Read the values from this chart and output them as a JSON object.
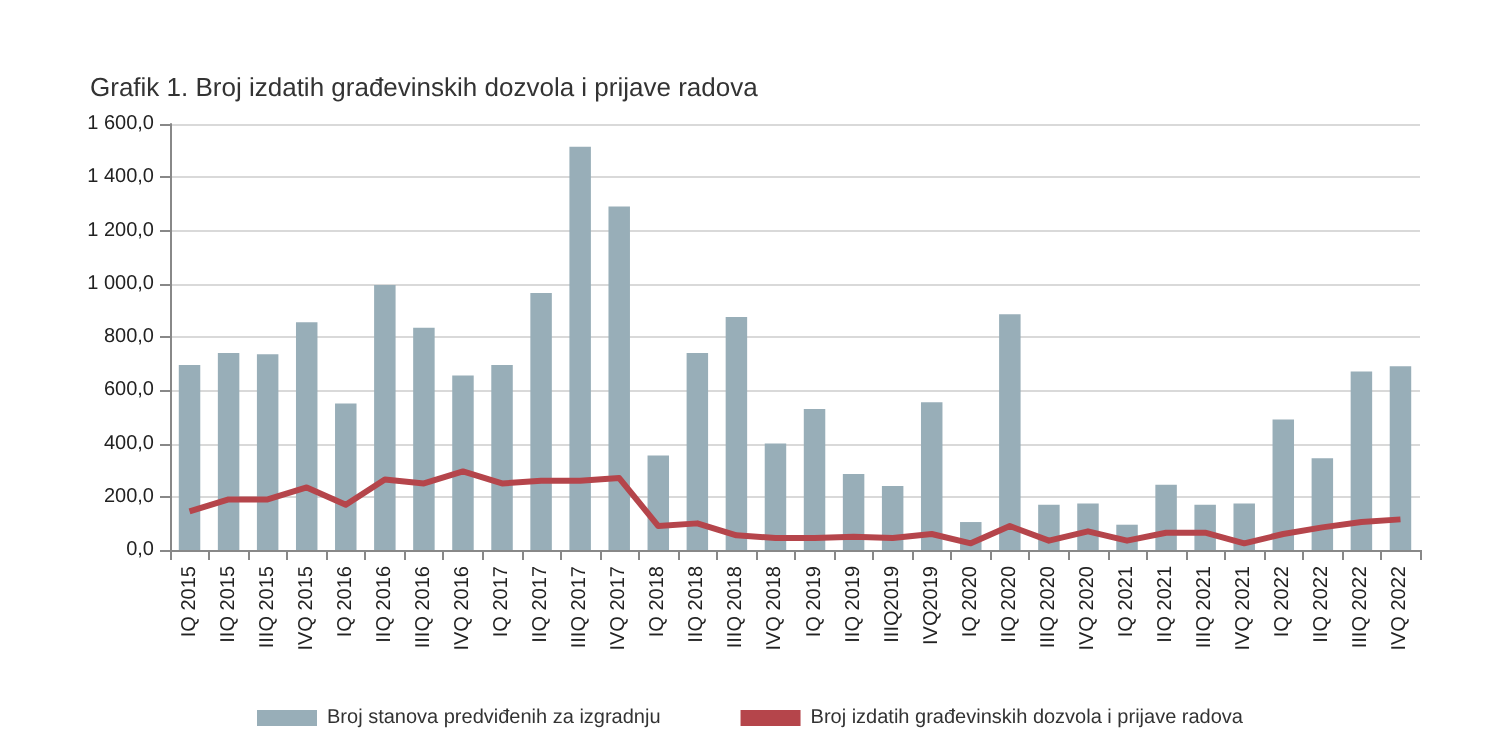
{
  "chart_data": {
    "type": "bar",
    "title": "Grafik 1. Broj izdatih građevinskih dozvola i prijave radova",
    "categories": [
      "IQ 2015",
      "IIQ 2015",
      "IIIQ 2015",
      "IVQ 2015",
      "IQ 2016",
      "IIQ 2016",
      "IIIQ 2016",
      "IVQ 2016",
      "IQ 2017",
      "IIQ 2017",
      "IIIQ 2017",
      "IVQ 2017",
      "IQ 2018",
      "IIQ 2018",
      "IIIQ 2018",
      "IVQ 2018",
      "IQ 2019",
      "IIQ 2019",
      "IIIQ2019",
      "IVQ2019",
      "IQ 2020",
      "IIQ 2020",
      "IIIQ 2020",
      "IVQ 2020",
      "IQ 2021",
      "IIQ 2021",
      "IIIQ 2021",
      "IVQ 2021",
      "IQ 2022",
      "IIQ 2022",
      "IIIQ 2022",
      "IVQ 2022"
    ],
    "series": [
      {
        "name": "Broj stanova predviđenih za izgradnju",
        "color": "#98aeb8",
        "values": [
          695,
          740,
          735,
          855,
          550,
          995,
          835,
          655,
          695,
          965,
          1515,
          1290,
          355,
          740,
          875,
          400,
          530,
          285,
          240,
          555,
          105,
          885,
          170,
          175,
          95,
          245,
          170,
          175,
          490,
          345,
          670,
          690
        ]
      },
      {
        "name": "Broj izdatih građevinskih dozvola i prijave radova",
        "type": "line",
        "color": "#b5454b",
        "values": [
          145,
          190,
          190,
          235,
          170,
          265,
          250,
          295,
          250,
          260,
          260,
          270,
          90,
          100,
          55,
          45,
          45,
          50,
          45,
          60,
          25,
          90,
          35,
          70,
          35,
          65,
          65,
          25,
          60,
          85,
          105,
          115
        ]
      }
    ],
    "ylim": [
      0,
      1600
    ],
    "yticks": [
      {
        "value": 0,
        "label": "0,0"
      },
      {
        "value": 200,
        "label": "200,0"
      },
      {
        "value": 400,
        "label": "400,0"
      },
      {
        "value": 600,
        "label": "600,0"
      },
      {
        "value": 800,
        "label": "800,0"
      },
      {
        "value": 1000,
        "label": "1 000,0"
      },
      {
        "value": 1200,
        "label": "1 200,0"
      },
      {
        "value": 1400,
        "label": "1 400,0"
      },
      {
        "value": 1600,
        "label": "1 600,0"
      }
    ],
    "grid": "y",
    "legend": "bottom",
    "marker": "none",
    "line_style": "solid"
  }
}
